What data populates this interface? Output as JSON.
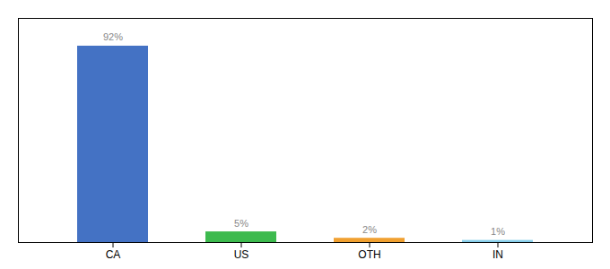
{
  "chart_data": {
    "type": "bar",
    "categories": [
      "CA",
      "US",
      "OTH",
      "IN"
    ],
    "values": [
      92,
      5,
      2,
      1
    ],
    "value_labels": [
      "92%",
      "5%",
      "2%",
      "1%"
    ],
    "colors": [
      "#4472c4",
      "#3dba4e",
      "#f0a030",
      "#87ceeb"
    ],
    "ylim": [
      0,
      105
    ],
    "data_labels": true,
    "tick_labels": "x"
  }
}
